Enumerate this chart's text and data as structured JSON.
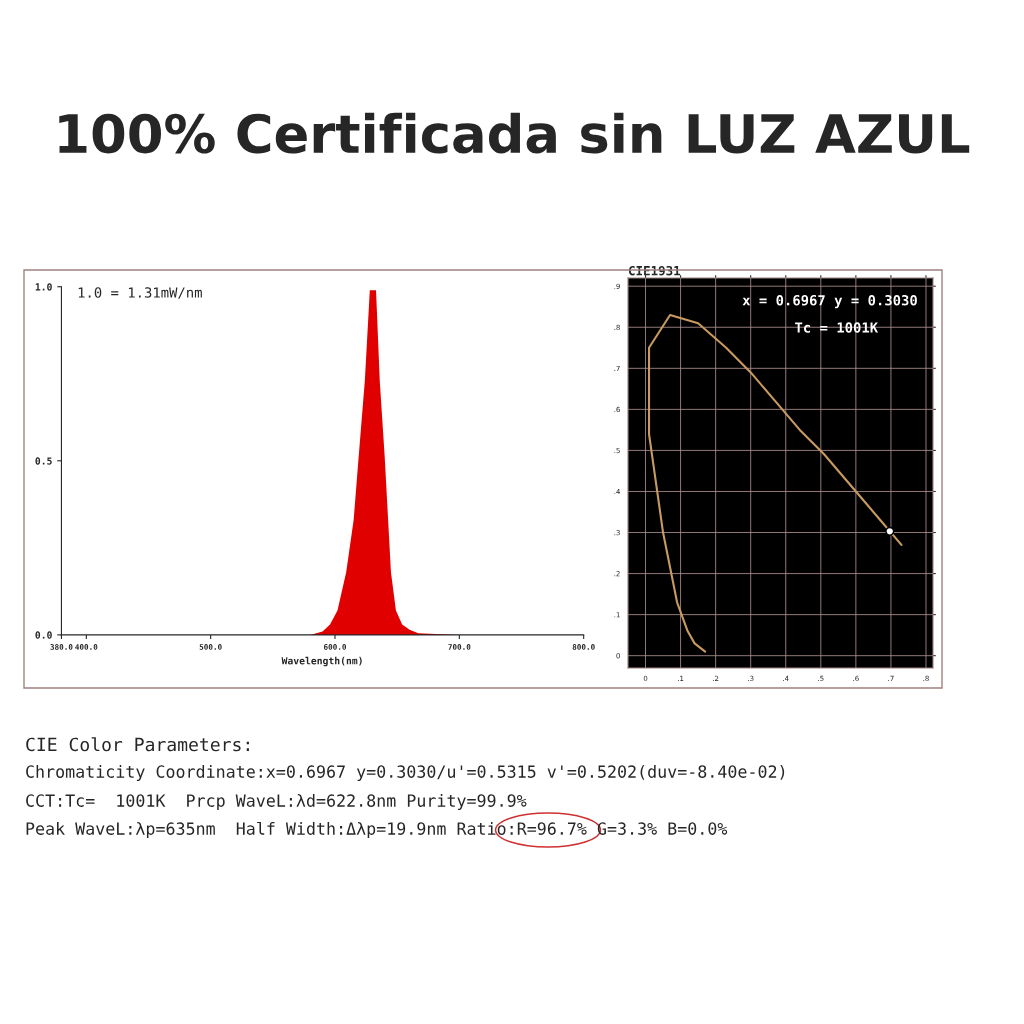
{
  "chart_data": [
    {
      "type": "area",
      "title": "100% Certificada sin LUZ AZUL",
      "xlabel": "Wavelength(nm)",
      "x": [
        380,
        500,
        580,
        590,
        596,
        602,
        609,
        615,
        619,
        624,
        628,
        633,
        636,
        640,
        645,
        649,
        654,
        660,
        667,
        700,
        800
      ],
      "series": [
        {
          "color": "#e00000",
          "values": [
            0,
            0,
            0,
            0.01,
            0.03,
            0.07,
            0.18,
            0.33,
            0.51,
            0.73,
            0.99,
            0.99,
            0.73,
            0.51,
            0.18,
            0.07,
            0.03,
            0.015,
            0.005,
            0,
            0
          ]
        }
      ],
      "xlim": [
        380,
        800
      ],
      "ylim": [
        0,
        1
      ],
      "xticks": [
        {
          "value": 380,
          "label": "380.0"
        },
        {
          "value": 400,
          "label": "400.0"
        },
        {
          "value": 500,
          "label": "500.0"
        },
        {
          "value": 600,
          "label": "600.0"
        },
        {
          "value": 700,
          "label": "700.0"
        },
        {
          "value": 800,
          "label": "800.0"
        }
      ],
      "yticks": [
        {
          "value": 0,
          "label": "0.0"
        },
        {
          "value": 0.5,
          "label": "0.5"
        },
        {
          "value": 1,
          "label": "1.0"
        }
      ],
      "grid": false,
      "annotations": [
        "1.0 = 1.31mW/nm",
        "CIE Color Parameters:",
        "Chromaticity Coordinate:x=0.6967 y=0.3030/u'=0.5315 v'=0.5202(duv=-8.40e-02)",
        "CCT:Tc=  1001K  Prcp WaveL:λd=622.8nm Purity=99.9%",
        "Peak WaveL:λp=635nm  Half Width:Δλp=19.9nm Ratio:R=96.7% G=3.3% B=0.0%"
      ]
    },
    {
      "type": "scatter",
      "title": "CIE1931",
      "series": [
        {
          "type": "line",
          "color": "#c89a60",
          "x": [
            0.17,
            0.14,
            0.12,
            0.09,
            0.05,
            0.01,
            0.01,
            0.07,
            0.15,
            0.23,
            0.3,
            0.37,
            0.44,
            0.51,
            0.58,
            0.63,
            0.67,
            0.73
          ],
          "values": [
            0.01,
            0.03,
            0.06,
            0.13,
            0.3,
            0.54,
            0.75,
            0.83,
            0.81,
            0.75,
            0.69,
            0.62,
            0.55,
            0.49,
            0.42,
            0.37,
            0.33,
            0.27
          ]
        },
        {
          "type": "scatter",
          "color": "#ffffff",
          "marker": "circle",
          "x": [
            0.6967
          ],
          "values": [
            0.303
          ]
        }
      ],
      "xlim": [
        -0.05,
        0.82
      ],
      "ylim": [
        -0.03,
        0.92
      ],
      "xticks": [
        {
          "value": 0,
          "label": "0"
        },
        {
          "value": 0.1,
          "label": ".1"
        },
        {
          "value": 0.2,
          "label": ".2"
        },
        {
          "value": 0.3,
          "label": ".3"
        },
        {
          "value": 0.4,
          "label": ".4"
        },
        {
          "value": 0.5,
          "label": ".5"
        },
        {
          "value": 0.6,
          "label": ".6"
        },
        {
          "value": 0.7,
          "label": ".7"
        },
        {
          "value": 0.8,
          "label": ".8"
        }
      ],
      "yticks": [
        {
          "value": 0,
          "label": "0"
        },
        {
          "value": 0.1,
          "label": ".1"
        },
        {
          "value": 0.2,
          "label": ".2"
        },
        {
          "value": 0.3,
          "label": ".3"
        },
        {
          "value": 0.4,
          "label": ".4"
        },
        {
          "value": 0.5,
          "label": ".5"
        },
        {
          "value": 0.6,
          "label": ".6"
        },
        {
          "value": 0.7,
          "label": ".7"
        },
        {
          "value": 0.8,
          "label": ".8"
        },
        {
          "value": 0.9,
          "label": ".9"
        }
      ],
      "grid": true,
      "annotations": [
        "x = 0.6967 y = 0.3030",
        "Tc = 1001K"
      ]
    }
  ]
}
